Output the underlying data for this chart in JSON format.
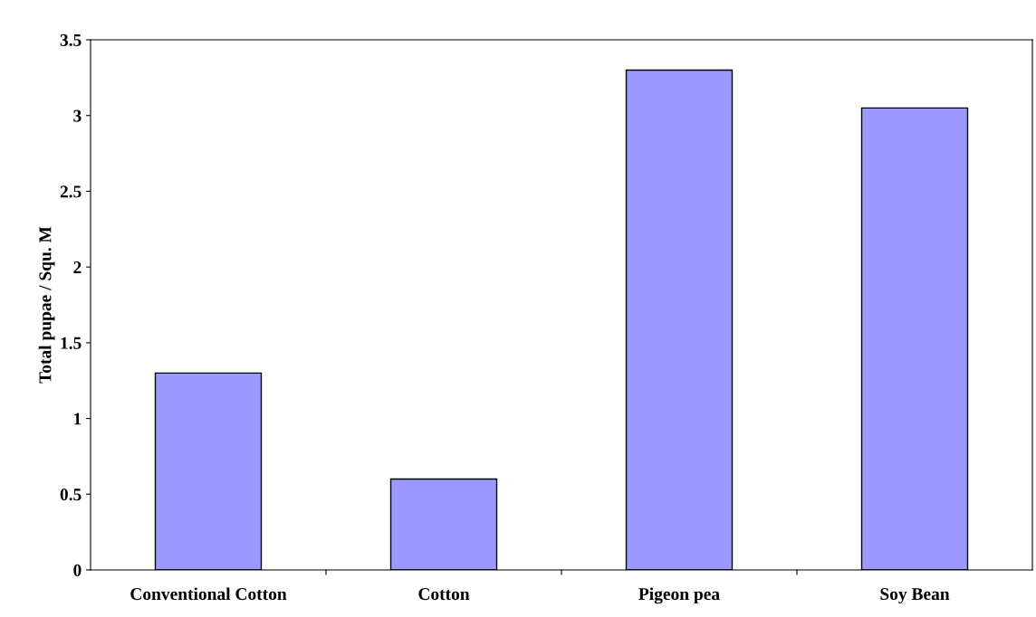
{
  "chart_data": {
    "type": "bar",
    "ylabel": "Total pupae / Squ. M",
    "categories": [
      "Conventional Cotton",
      "Cotton",
      "Pigeon pea",
      "Soy Bean"
    ],
    "values": [
      1.3,
      0.6,
      3.3,
      3.05
    ],
    "color": "#9999ff",
    "ylim": [
      0,
      3.5
    ],
    "yticks": [
      0,
      {
        "value": 0.5,
        "label": "0.5"
      },
      1,
      {
        "value": 1.5,
        "label": "1.5"
      },
      2,
      {
        "value": 2.5,
        "label": "2.5"
      },
      3,
      {
        "value": 3.5,
        "label": "3.5"
      }
    ],
    "grid": false
  }
}
